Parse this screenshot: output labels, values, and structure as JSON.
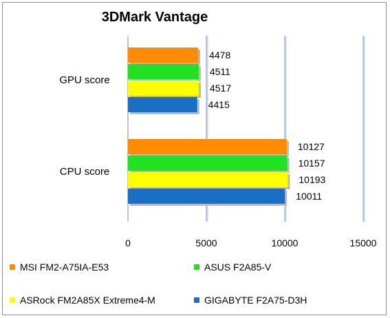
{
  "chart_data": {
    "type": "bar",
    "orientation": "horizontal",
    "title": "3DMark Vantage",
    "categories": [
      "GPU score",
      "CPU score"
    ],
    "series": [
      {
        "name": "MSI FM2-A75IA-E53",
        "color": "#ff8c00",
        "values": [
          4478,
          10127
        ]
      },
      {
        "name": "ASUS F2A85-V",
        "color": "#22e022",
        "values": [
          4511,
          10157
        ]
      },
      {
        "name": "ASRock FM2A85X Extreme4-M",
        "color": "#ffff00",
        "values": [
          4517,
          10193
        ]
      },
      {
        "name": "GIGABYTE F2A75-D3H",
        "color": "#1a6fc4",
        "values": [
          4415,
          10011
        ]
      }
    ],
    "xlim": [
      0,
      15000
    ],
    "xticks": [
      "0",
      "5000",
      "10000",
      "15000"
    ],
    "grid": true,
    "legend_position": "bottom"
  }
}
